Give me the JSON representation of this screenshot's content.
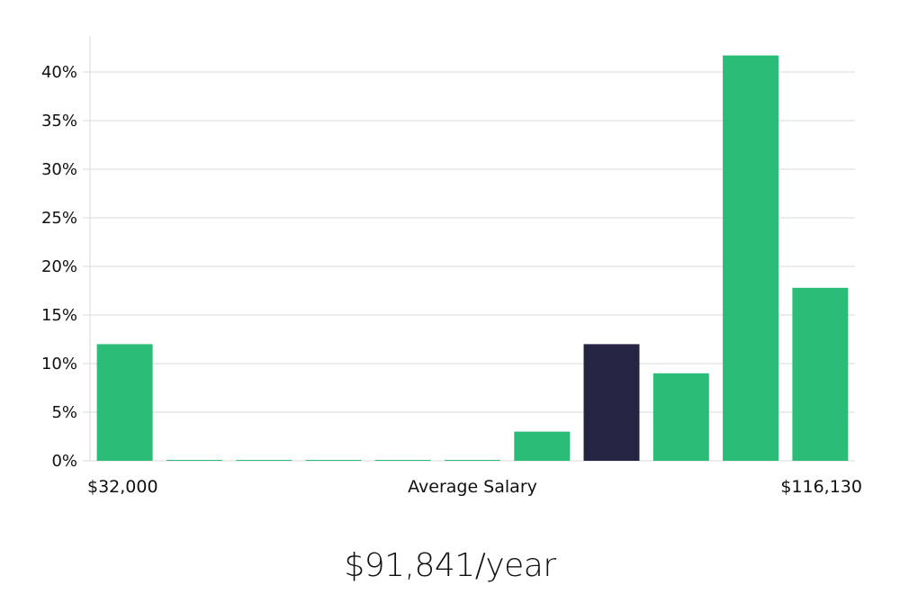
{
  "chart_data": {
    "type": "bar",
    "y_format": "percent",
    "ylim": [
      0,
      40
    ],
    "y_ticks": [
      0,
      5,
      10,
      15,
      20,
      25,
      30,
      35,
      40
    ],
    "y_tick_labels": [
      "0%",
      "5%",
      "10%",
      "15%",
      "20%",
      "25%",
      "30%",
      "35%",
      "40%"
    ],
    "values": [
      12,
      0,
      0,
      0,
      0,
      0,
      3,
      12,
      9,
      41.7,
      17.8
    ],
    "highlight_index": 7,
    "x_min_label": "$32,000",
    "x_center_label": "Average Salary",
    "x_max_label": "$116,130",
    "grid": true,
    "colors": {
      "bar": "#2bbd77",
      "highlight": "#262443",
      "grid": "#d9d9d9"
    }
  },
  "footer": {
    "salary": "$91,841/year"
  }
}
